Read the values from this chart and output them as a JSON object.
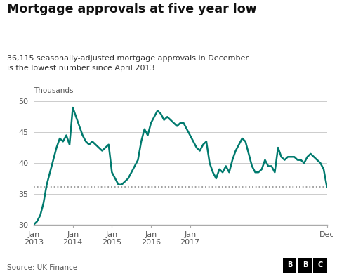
{
  "title": "Mortgage approvals at five year low",
  "subtitle": "36,115 seasonally-adjusted mortgage approvals in December\nis the lowest number since April 2013",
  "ylabel": "Thousands",
  "source": "Source: UK Finance",
  "line_color": "#007A6E",
  "dashed_line_value": 36.115,
  "dashed_color": "#999999",
  "ylim": [
    30,
    50
  ],
  "yticks": [
    30,
    35,
    40,
    45,
    50
  ],
  "background_color": "#ffffff",
  "grid_color": "#cccccc",
  "x_tick_labels": [
    "Jan\n2013",
    "Jan\n2014",
    "Jan\n2015",
    "Jan\n2016",
    "Jan\n2017",
    "Dec"
  ],
  "values": [
    30.0,
    30.5,
    31.5,
    33.5,
    36.5,
    38.5,
    40.5,
    42.5,
    44.0,
    43.5,
    44.5,
    43.0,
    49.0,
    47.5,
    46.0,
    44.5,
    43.5,
    43.0,
    43.5,
    43.0,
    42.5,
    42.0,
    42.5,
    43.0,
    38.5,
    37.5,
    36.5,
    36.5,
    37.0,
    37.5,
    38.5,
    39.5,
    40.5,
    43.5,
    45.5,
    44.5,
    46.5,
    47.5,
    48.5,
    48.0,
    47.0,
    47.5,
    47.0,
    46.5,
    46.0,
    46.5,
    46.5,
    45.5,
    44.5,
    43.5,
    42.5,
    42.0,
    43.0,
    43.5,
    40.0,
    38.5,
    37.5,
    39.0,
    38.5,
    39.5,
    38.5,
    40.5,
    42.0,
    43.0,
    44.0,
    43.5,
    41.5,
    39.5,
    38.5,
    38.5,
    39.0,
    40.5,
    39.5,
    39.5,
    38.5,
    42.5,
    41.0,
    40.5,
    41.0,
    41.0,
    41.0,
    40.5,
    40.5,
    40.0,
    41.0,
    41.5,
    41.0,
    40.5,
    40.0,
    39.0,
    36.115
  ]
}
